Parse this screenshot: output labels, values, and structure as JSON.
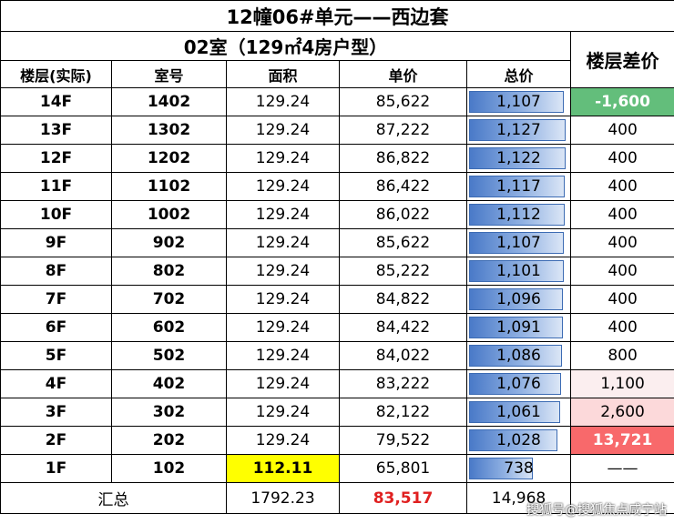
{
  "title": "12幢06#单元——西边套",
  "subtitle": "02室（129㎡4房户型）",
  "headers": {
    "floor": "楼层(实际)",
    "room": "室号",
    "area": "面积",
    "unit_price": "单价",
    "total_price": "总价",
    "floor_diff": "楼层差价"
  },
  "rows": [
    {
      "floor": "14F",
      "room": "1402",
      "area": "129.24",
      "unit_price": "85,622",
      "total": "1,107",
      "total_value": 1107,
      "diff": "-1,600"
    },
    {
      "floor": "13F",
      "room": "1302",
      "area": "129.24",
      "unit_price": "87,222",
      "total": "1,127",
      "total_value": 1127,
      "diff": "400"
    },
    {
      "floor": "12F",
      "room": "1202",
      "area": "129.24",
      "unit_price": "86,822",
      "total": "1,122",
      "total_value": 1122,
      "diff": "400"
    },
    {
      "floor": "11F",
      "room": "1102",
      "area": "129.24",
      "unit_price": "86,422",
      "total": "1,117",
      "total_value": 1117,
      "diff": "400"
    },
    {
      "floor": "10F",
      "room": "1002",
      "area": "129.24",
      "unit_price": "86,022",
      "total": "1,112",
      "total_value": 1112,
      "diff": "400"
    },
    {
      "floor": "9F",
      "room": "902",
      "area": "129.24",
      "unit_price": "85,622",
      "total": "1,107",
      "total_value": 1107,
      "diff": "400"
    },
    {
      "floor": "8F",
      "room": "802",
      "area": "129.24",
      "unit_price": "85,222",
      "total": "1,101",
      "total_value": 1101,
      "diff": "400"
    },
    {
      "floor": "7F",
      "room": "702",
      "area": "129.24",
      "unit_price": "84,822",
      "total": "1,096",
      "total_value": 1096,
      "diff": "400"
    },
    {
      "floor": "6F",
      "room": "602",
      "area": "129.24",
      "unit_price": "84,422",
      "total": "1,091",
      "total_value": 1091,
      "diff": "400"
    },
    {
      "floor": "5F",
      "room": "502",
      "area": "129.24",
      "unit_price": "84,022",
      "total": "1,086",
      "total_value": 1086,
      "diff": "800"
    },
    {
      "floor": "4F",
      "room": "402",
      "area": "129.24",
      "unit_price": "83,222",
      "total": "1,076",
      "total_value": 1076,
      "diff": "1,100"
    },
    {
      "floor": "3F",
      "room": "302",
      "area": "129.24",
      "unit_price": "82,122",
      "total": "1,061",
      "total_value": 1061,
      "diff": "2,600"
    },
    {
      "floor": "2F",
      "room": "202",
      "area": "129.24",
      "unit_price": "79,522",
      "total": "1,028",
      "total_value": 1028,
      "diff": "13,721"
    },
    {
      "floor": "1F",
      "room": "102",
      "area": "112.11",
      "unit_price": "65,801",
      "total": "738",
      "total_value": 738,
      "diff": "——"
    }
  ],
  "summary": {
    "label": "汇总",
    "area": "1792.23",
    "unit_price": "83,517",
    "total": "14,968"
  },
  "watermark": "搜狐号@搜狐焦点咸宁站",
  "colors": {
    "bar": "#4a7ac8",
    "diff_negative": "#63be7b",
    "diff_max": "#f8696b",
    "highlight_area": "#ffff00",
    "summary_price": "#e02020"
  }
}
